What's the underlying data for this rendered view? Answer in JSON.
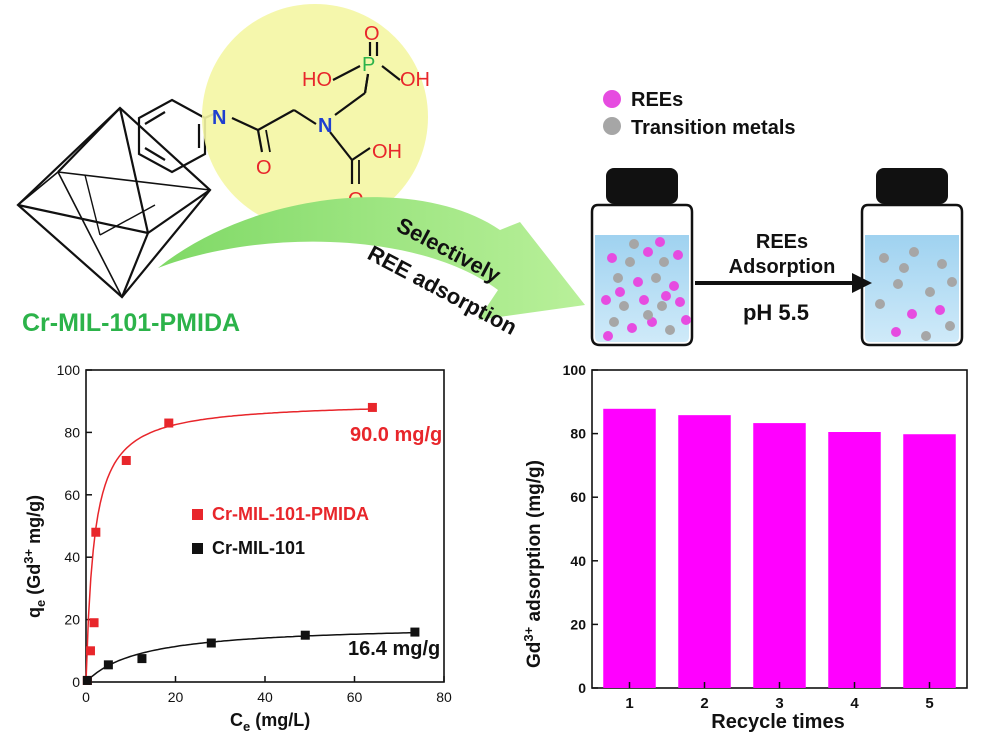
{
  "figure": {
    "colors": {
      "ree": "#e64ce0",
      "metal": "#a6a6a6",
      "green": "#2cb34a",
      "red": "#e8262b",
      "blue": "#1f3fd0",
      "bar": "#ff00ff",
      "arrow": "#8fe070"
    }
  },
  "molecule": {
    "n_amide": "N",
    "o_amide": "O",
    "n_amine": "N",
    "p": "P",
    "p_o": "O",
    "ho_left": "HO",
    "oh_right": "OH",
    "acid_oh": "OH",
    "acid_o": "O",
    "material_label": "Cr-MIL-101-PMIDA"
  },
  "selective_arrow": {
    "line1": "Selectively",
    "line2": "REE adsorption"
  },
  "legend_top": {
    "ree": "REEs",
    "metals": "Transition metals"
  },
  "process": {
    "line1": "REEs",
    "line2": "Adsorption",
    "condition": "pH 5.5"
  },
  "chart_data": [
    {
      "type": "scatter",
      "xlabel_main": "C",
      "xlabel_sub": "e",
      "xlabel_rest": " (mg/L)",
      "ylabel_q": "q",
      "ylabel_e": "e",
      "ylabel_pre": " (Gd",
      "ylabel_sup": "3+",
      "ylabel_post": " mg/g)",
      "xlim": [
        0,
        80
      ],
      "ylim": [
        0,
        100
      ],
      "xticks": [
        "0",
        "20",
        "40",
        "60",
        "80"
      ],
      "yticks": [
        "0",
        "20",
        "40",
        "60",
        "80",
        "100"
      ],
      "series": [
        {
          "name": "Cr-MIL-101-PMIDA",
          "color": "#e8262b",
          "x": [
            0.3,
            1.0,
            1.8,
            2.2,
            9.0,
            18.5,
            64.0
          ],
          "y": [
            0.5,
            10,
            19,
            48,
            71,
            83,
            88
          ]
        },
        {
          "name": "Cr-MIL-101",
          "color": "#111111",
          "x": [
            0.3,
            5.0,
            12.5,
            28.0,
            49.0,
            73.5
          ],
          "y": [
            0.5,
            5.5,
            7.5,
            12.5,
            15,
            16
          ]
        }
      ],
      "annotations": [
        "90.0 mg/g",
        "16.4 mg/g"
      ]
    },
    {
      "type": "bar",
      "xlabel": "Recycle times",
      "ylabel_pre": "Gd",
      "ylabel_sup": "3+",
      "ylabel_post": " adsorption (mg/g)",
      "ylim": [
        0,
        100
      ],
      "yticks": [
        "0",
        "20",
        "40",
        "60",
        "80",
        "100"
      ],
      "categories": [
        "1",
        "2",
        "3",
        "4",
        "5"
      ],
      "values": [
        87.8,
        85.8,
        83.3,
        80.5,
        79.8
      ],
      "color": "#ff00ff"
    }
  ]
}
